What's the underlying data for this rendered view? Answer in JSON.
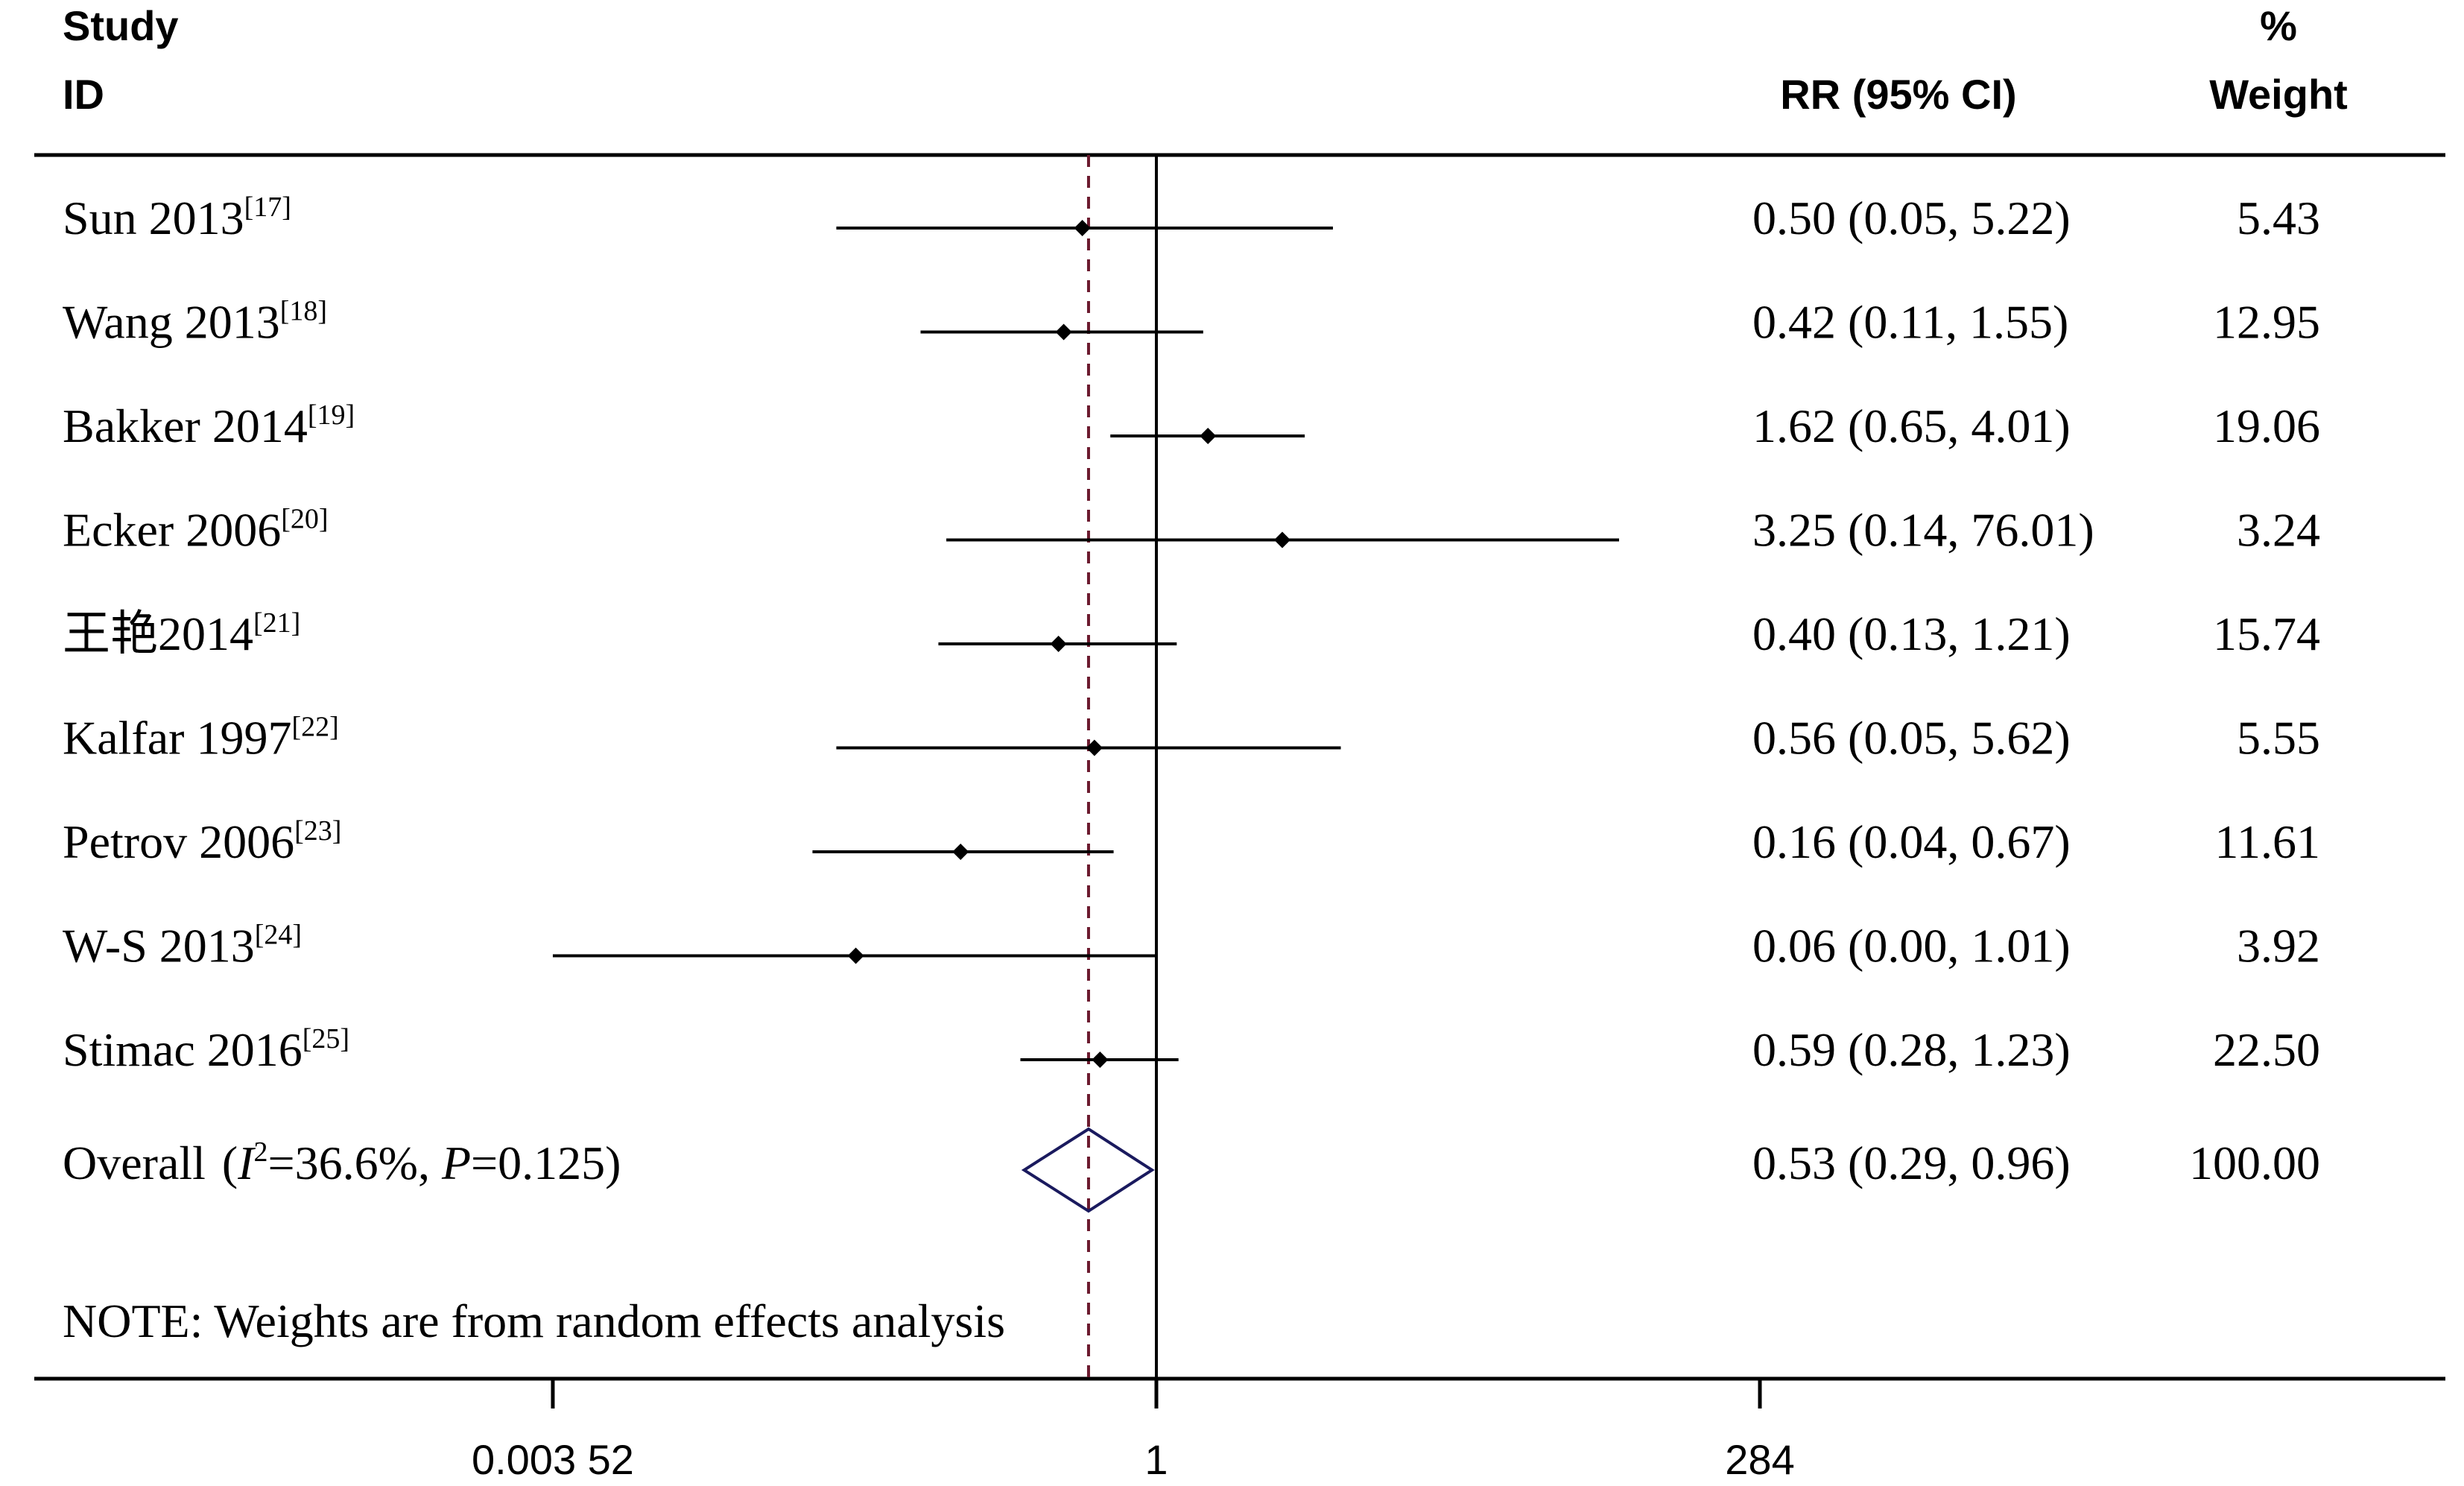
{
  "header": {
    "study": "Study",
    "id": "ID",
    "rr": "RR (95% CI)",
    "pct": "%",
    "weight": "Weight"
  },
  "note": "NOTE: Weights are from random effects analysis",
  "overall_label": {
    "prefix": "Overall",
    "i2_symbol": "I",
    "i2_power": "2",
    "i2_value": "=36.6%, ",
    "p_symbol": "P",
    "p_value": "=0.125)",
    "open_paren": "("
  },
  "chart_data": {
    "type": "forest",
    "x_scale": "log",
    "x_ticks": [
      {
        "value": 0.00352,
        "label": "0.003 52"
      },
      {
        "value": 1,
        "label": "1"
      },
      {
        "value": 284,
        "label": "284"
      }
    ],
    "reference_line": 1,
    "pooled_line": 0.53,
    "studies": [
      {
        "name": "Sun 2013",
        "ref": "[17]",
        "rr": 0.5,
        "lower": 0.05,
        "upper": 5.22,
        "ci_text": "0.50 (0.05, 5.22)",
        "weight": "5.43"
      },
      {
        "name": "Wang 2013",
        "ref": "[18]",
        "rr": 0.42,
        "lower": 0.11,
        "upper": 1.55,
        "ci_text": "0.42 (0.11, 1.55)",
        "weight": "12.95"
      },
      {
        "name": "Bakker 2014",
        "ref": "[19]",
        "rr": 1.62,
        "lower": 0.65,
        "upper": 4.01,
        "ci_text": "1.62 (0.65, 4.01)",
        "weight": "19.06"
      },
      {
        "name": "Ecker 2006",
        "ref": "[20]",
        "rr": 3.25,
        "lower": 0.14,
        "upper": 76.01,
        "ci_text": "3.25 (0.14, 76.01)",
        "weight": "3.24"
      },
      {
        "name": "王艳2014",
        "ref": "[21]",
        "rr": 0.4,
        "lower": 0.13,
        "upper": 1.21,
        "ci_text": "0.40 (0.13, 1.21)",
        "weight": "15.74"
      },
      {
        "name": "Kalfar 1997",
        "ref": "[22]",
        "rr": 0.56,
        "lower": 0.05,
        "upper": 5.62,
        "ci_text": "0.56 (0.05, 5.62)",
        "weight": "5.55"
      },
      {
        "name": "Petrov 2006",
        "ref": "[23]",
        "rr": 0.16,
        "lower": 0.04,
        "upper": 0.67,
        "ci_text": "0.16 (0.04, 0.67)",
        "weight": "11.61"
      },
      {
        "name": "W-S 2013",
        "ref": "[24]",
        "rr": 0.06,
        "lower": 0.00352,
        "upper": 1.01,
        "ci_text": "0.06 (0.00, 1.01)",
        "weight": "3.92"
      },
      {
        "name": "Stimac 2016",
        "ref": "[25]",
        "rr": 0.59,
        "lower": 0.28,
        "upper": 1.23,
        "ci_text": "0.59 (0.28, 1.23)",
        "weight": "22.50"
      }
    ],
    "overall": {
      "rr": 0.53,
      "lower": 0.29,
      "upper": 0.96,
      "ci_text": "0.53 (0.29, 0.96)",
      "weight": "100.00"
    }
  },
  "colors": {
    "line": "#000000",
    "pooled_dash": "#6b1a2e",
    "diamond": "#1a1a5e"
  }
}
